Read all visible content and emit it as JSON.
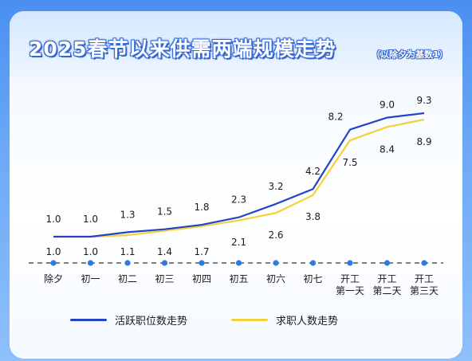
{
  "header": {
    "title": "2025春节以来供需两端规模走势",
    "subtitle": "（以除夕为基数1）"
  },
  "legend": {
    "item1": "活跃职位数走势",
    "item2": "求职人数走势"
  },
  "colors": {
    "series1": "#2443c7",
    "series2": "#f2d23a",
    "axis_dot": "#2e7be0"
  },
  "chart_data": {
    "type": "line",
    "categories": [
      "除夕",
      "初一",
      "初二",
      "初三",
      "初四",
      "初五",
      "初六",
      "初七",
      "开工\n第一天",
      "开工\n第二天",
      "开工\n第三天"
    ],
    "series": [
      {
        "name": "活跃职位数走势",
        "values": [
          1.0,
          1.0,
          1.3,
          1.5,
          1.8,
          2.3,
          3.2,
          4.2,
          8.2,
          9.0,
          9.3
        ]
      },
      {
        "name": "求职人数走势",
        "values": [
          1.0,
          1.0,
          1.1,
          1.4,
          1.7,
          2.1,
          2.6,
          3.8,
          7.5,
          8.4,
          8.9
        ]
      }
    ],
    "title": "2025春节以来供需两端规模走势",
    "xlabel": "",
    "ylabel": "",
    "grid": false,
    "legend_position": "bottom"
  }
}
